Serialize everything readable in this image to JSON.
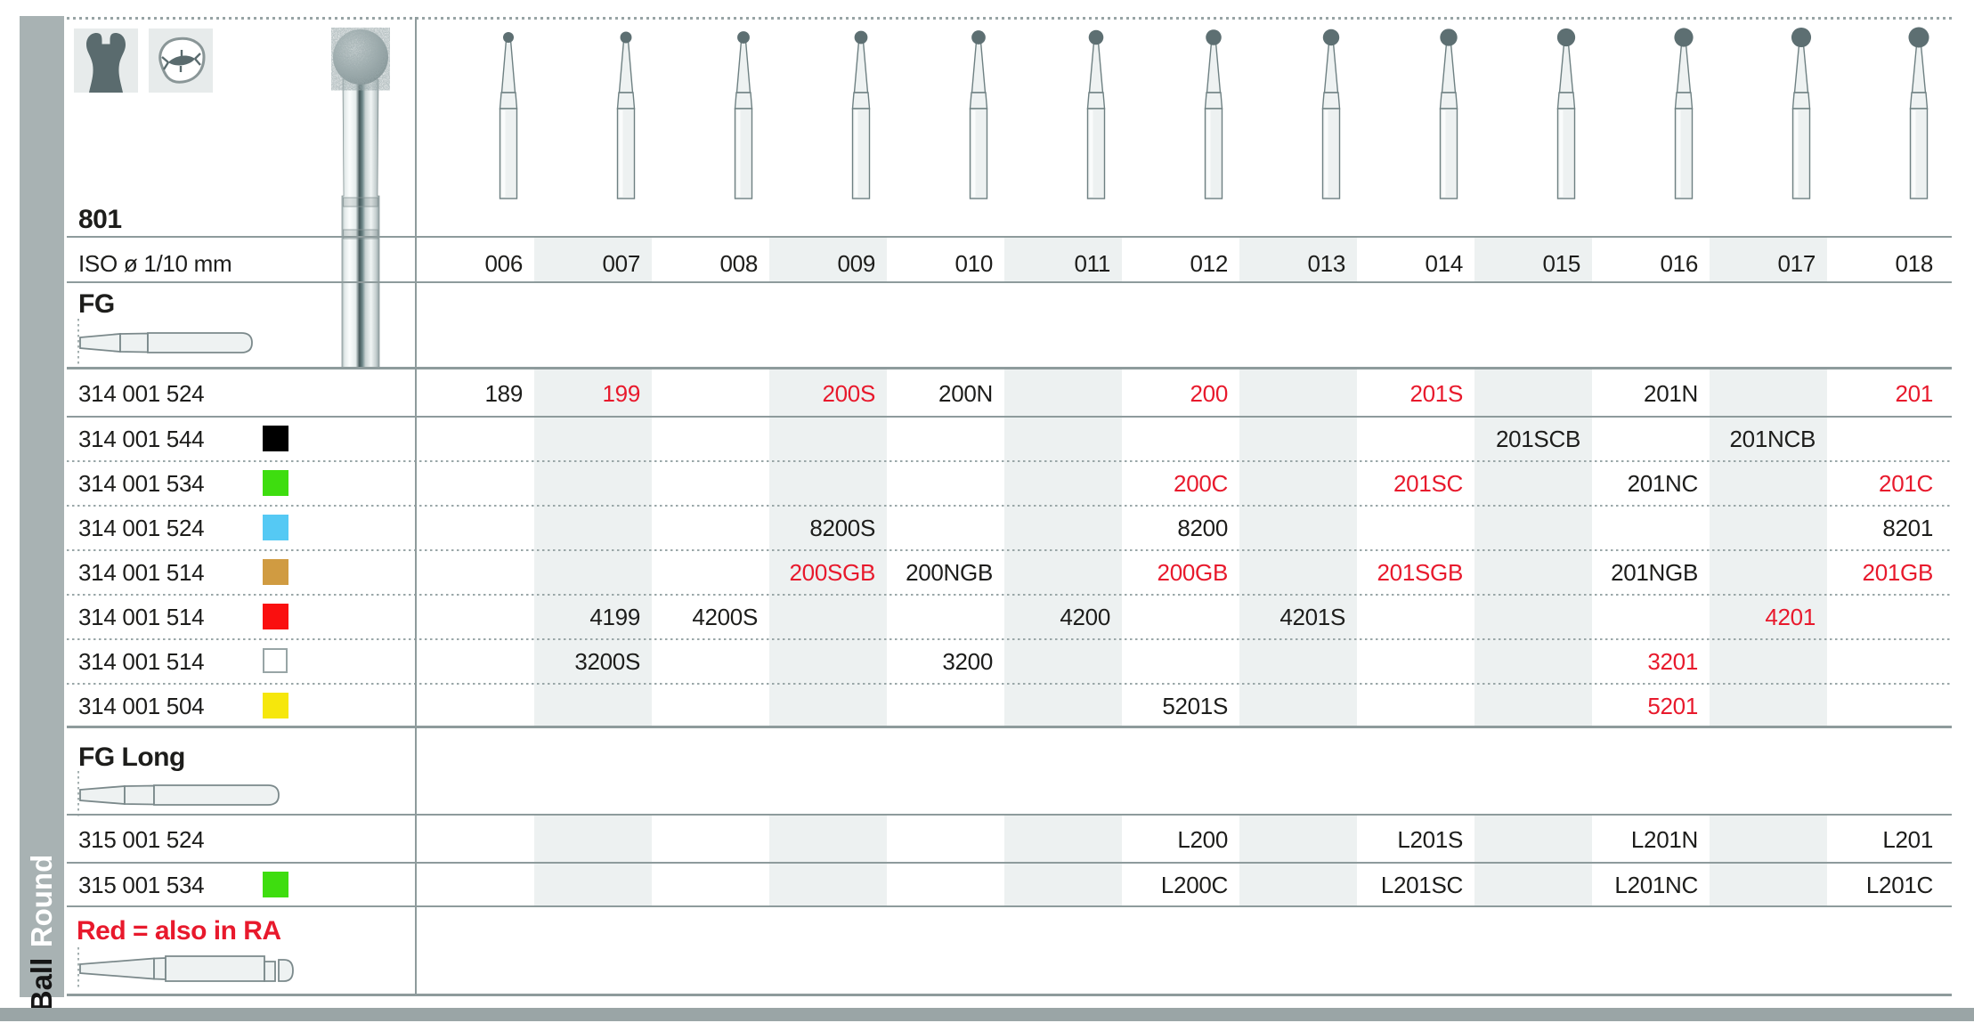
{
  "sidebar": {
    "primary": "Ball",
    "secondary": "Round"
  },
  "header": {
    "product_number": "801",
    "iso_label": "ISO ø 1/10 mm",
    "icons": [
      "tooth-crown-icon",
      "tooth-occlusal-icon"
    ]
  },
  "columns": [
    "006",
    "007",
    "008",
    "009",
    "010",
    "011",
    "012",
    "013",
    "014",
    "015",
    "016",
    "017",
    "018"
  ],
  "shaded_columns": [
    "007",
    "009",
    "011",
    "013",
    "015",
    "017"
  ],
  "sections": {
    "fg": {
      "label": "FG",
      "rows": [
        {
          "code": "314 001 524",
          "chip": null,
          "cells": [
            {
              "col": "006",
              "text": "189",
              "red": false
            },
            {
              "col": "007",
              "text": "199",
              "red": true
            },
            {
              "col": "009",
              "text": "200S",
              "red": true
            },
            {
              "col": "010",
              "text": "200N",
              "red": false
            },
            {
              "col": "012",
              "text": "200",
              "red": true
            },
            {
              "col": "014",
              "text": "201S",
              "red": true
            },
            {
              "col": "016",
              "text": "201N",
              "red": false
            },
            {
              "col": "018",
              "text": "201",
              "red": true
            }
          ]
        },
        {
          "code": "314 001 544",
          "chip": "black",
          "cells": [
            {
              "col": "015",
              "text": "201SCB",
              "red": false
            },
            {
              "col": "017",
              "text": "201NCB",
              "red": false
            }
          ]
        },
        {
          "code": "314 001 534",
          "chip": "green",
          "cells": [
            {
              "col": "012",
              "text": "200C",
              "red": true
            },
            {
              "col": "014",
              "text": "201SC",
              "red": true
            },
            {
              "col": "016",
              "text": "201NC",
              "red": false
            },
            {
              "col": "018",
              "text": "201C",
              "red": true
            }
          ]
        },
        {
          "code": "314 001 524",
          "chip": "blue",
          "cells": [
            {
              "col": "009",
              "text": "8200S",
              "red": false
            },
            {
              "col": "012",
              "text": "8200",
              "red": false
            },
            {
              "col": "018",
              "text": "8201",
              "red": false
            }
          ]
        },
        {
          "code": "314 001 514",
          "chip": "gold",
          "cells": [
            {
              "col": "009",
              "text": "200SGB",
              "red": true
            },
            {
              "col": "010",
              "text": "200NGB",
              "red": false
            },
            {
              "col": "012",
              "text": "200GB",
              "red": true
            },
            {
              "col": "014",
              "text": "201SGB",
              "red": true
            },
            {
              "col": "016",
              "text": "201NGB",
              "red": false
            },
            {
              "col": "018",
              "text": "201GB",
              "red": true
            }
          ]
        },
        {
          "code": "314 001 514",
          "chip": "red",
          "cells": [
            {
              "col": "007",
              "text": "4199",
              "red": false
            },
            {
              "col": "008",
              "text": "4200S",
              "red": false
            },
            {
              "col": "011",
              "text": "4200",
              "red": false
            },
            {
              "col": "013",
              "text": "4201S",
              "red": false
            },
            {
              "col": "017",
              "text": "4201",
              "red": true
            }
          ]
        },
        {
          "code": "314 001 514",
          "chip": "white",
          "cells": [
            {
              "col": "007",
              "text": "3200S",
              "red": false
            },
            {
              "col": "010",
              "text": "3200",
              "red": false
            },
            {
              "col": "016",
              "text": "3201",
              "red": true
            }
          ]
        },
        {
          "code": "314 001 504",
          "chip": "yellow",
          "cells": [
            {
              "col": "012",
              "text": "5201S",
              "red": false
            },
            {
              "col": "016",
              "text": "5201",
              "red": true
            }
          ]
        }
      ]
    },
    "fg_long": {
      "label": "FG Long",
      "rows": [
        {
          "code": "315 001 524",
          "chip": null,
          "cells": [
            {
              "col": "012",
              "text": "L200",
              "red": false
            },
            {
              "col": "014",
              "text": "L201S",
              "red": false
            },
            {
              "col": "016",
              "text": "L201N",
              "red": false
            },
            {
              "col": "018",
              "text": "L201",
              "red": false
            }
          ]
        },
        {
          "code": "315 001 534",
          "chip": "green",
          "cells": [
            {
              "col": "012",
              "text": "L200C",
              "red": false
            },
            {
              "col": "014",
              "text": "L201SC",
              "red": false
            },
            {
              "col": "016",
              "text": "L201NC",
              "red": false
            },
            {
              "col": "018",
              "text": "L201C",
              "red": false
            }
          ]
        }
      ]
    },
    "note": {
      "text": "Red = also in RA"
    }
  },
  "colors": {
    "accent_red": "#e8192c",
    "text": "#1d1d1b",
    "band": "#edf1f1",
    "line": "#8e9b9c",
    "sidebar": "#a8b2b3",
    "bottom_bar": "#9aa5a6",
    "chips": {
      "black": "#000000",
      "green": "#3edd0f",
      "blue": "#55c9f4",
      "gold": "#d09b41",
      "red": "#fa0f0f",
      "white": "#ffffff",
      "yellow": "#f6e70c"
    }
  }
}
